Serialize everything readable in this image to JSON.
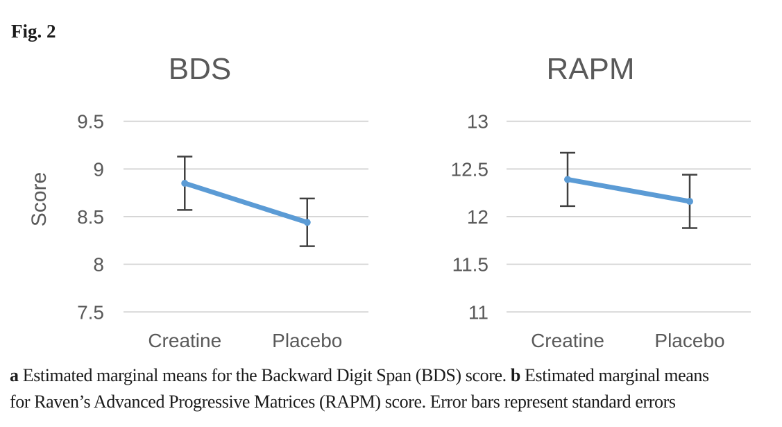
{
  "figure_label": "Fig. 2",
  "colors": {
    "line": "#5B9BD5",
    "marker": "#5B9BD5",
    "error_bar": "#404040",
    "gridline": "#D6D6D6",
    "chart_text": "#595959",
    "caption_text": "#1b1b1b"
  },
  "caption": {
    "line1": {
      "bold_a": "a",
      "text_a": " Estimated marginal means for the Backward Digit Span (BDS) score. ",
      "bold_b": "b",
      "text_b": " Estimated marginal means"
    },
    "line2": "for Raven’s Advanced Progressive Matrices (RAPM) score. Error bars represent standard errors"
  },
  "chart_data": [
    {
      "type": "line",
      "title": "BDS",
      "ylabel": "Score",
      "xlabel": "",
      "categories": [
        "Creatine",
        "Placebo"
      ],
      "series": [
        {
          "name": "Estimated marginal mean",
          "values": [
            8.85,
            8.44
          ],
          "error_upper": [
            9.13,
            8.69
          ],
          "error_lower": [
            8.57,
            8.19
          ]
        }
      ],
      "yticks": [
        9.5,
        9,
        8.5,
        8,
        7.5
      ],
      "ylim": [
        7.5,
        9.5
      ],
      "grid": true,
      "legend": "none"
    },
    {
      "type": "line",
      "title": "RAPM",
      "ylabel": "",
      "xlabel": "",
      "categories": [
        "Creatine",
        "Placebo"
      ],
      "series": [
        {
          "name": "Estimated marginal mean",
          "values": [
            12.39,
            12.16
          ],
          "error_upper": [
            12.67,
            12.44
          ],
          "error_lower": [
            12.11,
            11.88
          ]
        }
      ],
      "yticks": [
        13,
        12.5,
        12,
        11.5,
        11
      ],
      "ylim": [
        11,
        13
      ],
      "grid": true,
      "legend": "none"
    }
  ]
}
